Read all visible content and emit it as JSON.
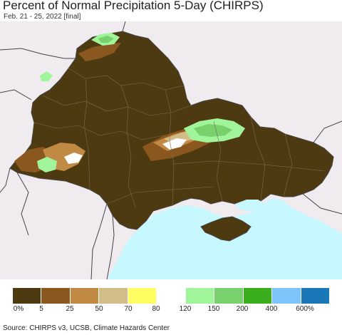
{
  "title": "Percent of Normal Precipitation 5-Day (CHIRPS)",
  "subtitle": "Feb. 21 - 25, 2022 [final]",
  "source": "Source: CHIRPS v3, UCSB, Climate Hazards Center",
  "colors": {
    "land_outside": "#efebef",
    "sea": "#c8f8ff",
    "border": "#444444",
    "oblast_line": "#7a6a55"
  },
  "legend": {
    "colors": [
      "#4e3a11",
      "#8a571e",
      "#c08a45",
      "#d2bd88",
      "#fffe62",
      "#ffffff",
      "#a0f59a",
      "#78d16c",
      "#3aae1d",
      "#7cc4fa",
      "#1a78b8"
    ],
    "labels": [
      "0%",
      "5",
      "25",
      "50",
      "70",
      "80",
      "120",
      "150",
      "200",
      "400",
      "600%"
    ]
  }
}
